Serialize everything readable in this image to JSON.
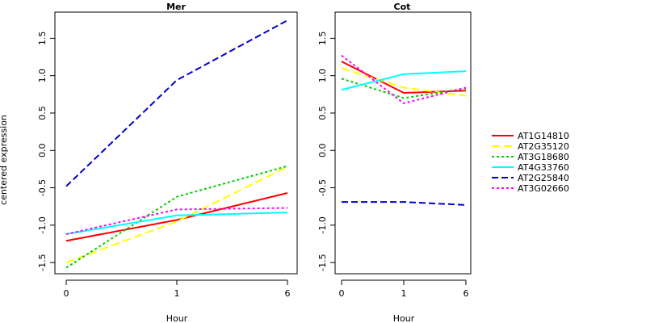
{
  "chart_data": {
    "type": "line",
    "ylabel": "centered expression",
    "y_ticks": [
      "-1.5",
      "-1.0",
      "-0.5",
      "0.0",
      "0.5",
      "1.0",
      "1.5"
    ],
    "ylim": [
      -1.65,
      1.85
    ],
    "legend_position": "right",
    "legend": [
      {
        "name": "AT1G14810",
        "color": "#ff0000",
        "dash": "solid"
      },
      {
        "name": "AT2G35120",
        "color": "#ffff00",
        "dash": "long-dash"
      },
      {
        "name": "AT3G18680",
        "color": "#00cc00",
        "dash": "dotted"
      },
      {
        "name": "AT4G33760",
        "color": "#00ffff",
        "dash": "solid"
      },
      {
        "name": "AT2G25840",
        "color": "#0000cc",
        "dash": "dashed"
      },
      {
        "name": "AT3G02660",
        "color": "#ff00ff",
        "dash": "dotted"
      }
    ],
    "panels": [
      {
        "title": "Mer",
        "xlabel": "Hour",
        "categories": [
          "0",
          "1",
          "6"
        ],
        "series": [
          {
            "name": "AT1G14810",
            "values": [
              -1.21,
              -0.93,
              -0.57
            ]
          },
          {
            "name": "AT2G35120",
            "values": [
              -1.5,
              -0.95,
              -0.22
            ]
          },
          {
            "name": "AT3G18680",
            "values": [
              -1.57,
              -0.62,
              -0.21
            ]
          },
          {
            "name": "AT4G33760",
            "values": [
              -1.12,
              -0.87,
              -0.83
            ]
          },
          {
            "name": "AT2G25840",
            "values": [
              -0.48,
              0.94,
              1.74
            ]
          },
          {
            "name": "AT3G02660",
            "values": [
              -1.12,
              -0.79,
              -0.77
            ]
          }
        ]
      },
      {
        "title": "Cot",
        "xlabel": "Hour",
        "categories": [
          "0",
          "1",
          "6"
        ],
        "series": [
          {
            "name": "AT1G14810",
            "values": [
              1.19,
              0.77,
              0.8
            ]
          },
          {
            "name": "AT2G35120",
            "values": [
              1.1,
              0.84,
              0.73
            ]
          },
          {
            "name": "AT3G18680",
            "values": [
              0.96,
              0.7,
              0.83
            ]
          },
          {
            "name": "AT4G33760",
            "values": [
              0.81,
              1.02,
              1.06
            ]
          },
          {
            "name": "AT2G25840",
            "values": [
              -0.69,
              -0.69,
              -0.73
            ]
          },
          {
            "name": "AT3G02660",
            "values": [
              1.27,
              0.63,
              0.84
            ]
          }
        ]
      }
    ]
  }
}
